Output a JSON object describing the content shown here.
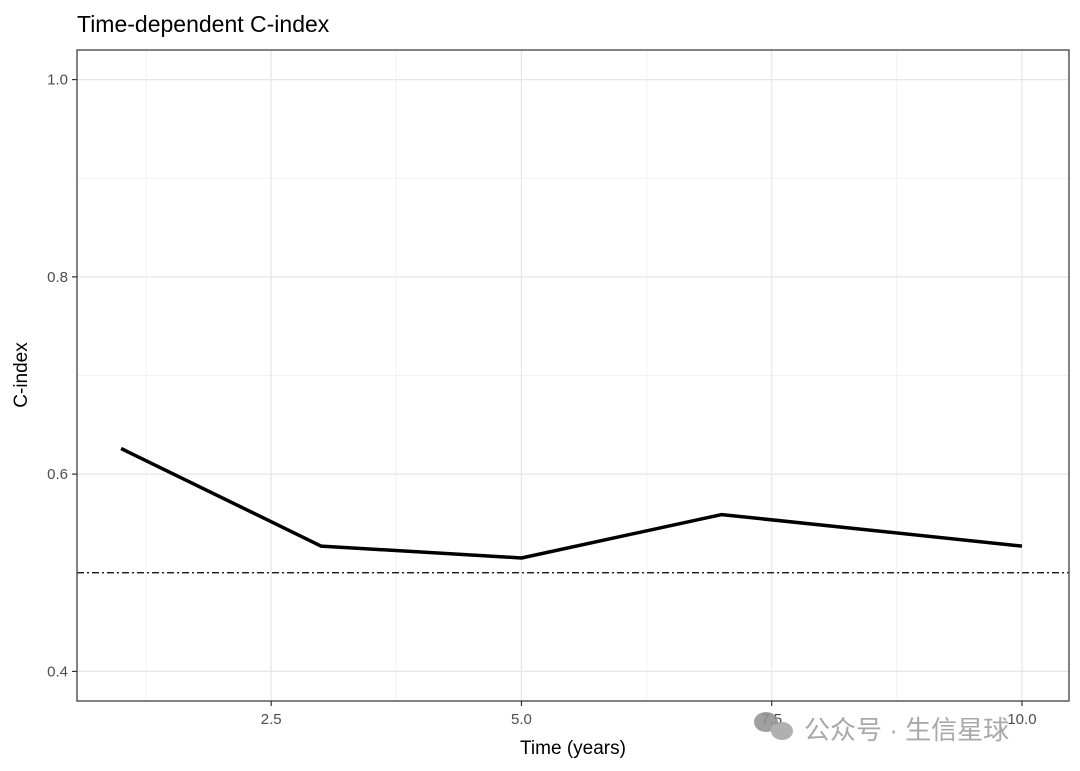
{
  "chart_data": {
    "type": "line",
    "title": "Time-dependent C-index",
    "xlabel": "Time (years)",
    "ylabel": "C-index",
    "xlim": [
      0.56,
      10.47
    ],
    "ylim": [
      0.37,
      1.03
    ],
    "x_ticks": [
      2.5,
      5.0,
      7.5,
      10.0
    ],
    "x_tick_labels": [
      "2.5",
      "5.0",
      "7.5",
      "10.0"
    ],
    "y_ticks": [
      0.4,
      0.6,
      0.8,
      1.0
    ],
    "y_tick_labels": [
      "0.4",
      "0.6",
      "0.8",
      "1.0"
    ],
    "grid": true,
    "legend": "none",
    "series": [
      {
        "name": "C-index",
        "x": [
          1,
          3,
          5,
          7,
          10
        ],
        "values": [
          0.626,
          0.527,
          0.515,
          0.559,
          0.527
        ],
        "color": "#000000",
        "line_style": "solid"
      }
    ],
    "reference_lines": [
      {
        "axis": "y",
        "value": 0.5,
        "line_style": "dotdash",
        "color": "#000000"
      }
    ]
  },
  "watermark": {
    "text": "公众号 · 生信星球",
    "icon": "wechat-icon"
  }
}
